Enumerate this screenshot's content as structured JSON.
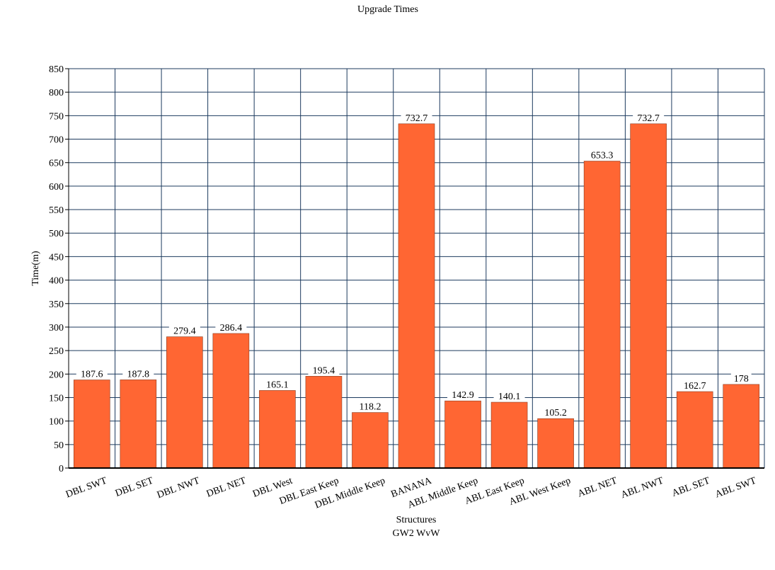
{
  "chart_data": {
    "type": "bar",
    "title": "Upgrade Times",
    "xlabel": "Structures",
    "subtitle": "GW2 WvW",
    "ylabel": "Time(m)",
    "ylim": [
      0,
      850
    ],
    "ytick_step": 50,
    "grid": true,
    "bar_color": "#ff6633",
    "grid_color": "#1c3a5e",
    "categories": [
      "DBL SWT",
      "DBL SET",
      "DBL NWT",
      "DBL NET",
      "DBL West",
      "DBL East Keep",
      "DBL Middle Keep",
      "BANANA",
      "ABL Middle Keep",
      "ABL East Keep",
      "ABL West Keep",
      "ABL NET",
      "ABL NWT",
      "ABL SET",
      "ABL SWT"
    ],
    "values": [
      187.6,
      187.8,
      279.4,
      286.4,
      165.1,
      195.4,
      118.2,
      732.7,
      142.9,
      140.1,
      105.2,
      653.3,
      732.7,
      162.7,
      178
    ],
    "value_labels": [
      "187.6",
      "187.8",
      "279.4",
      "286.4",
      "165.1",
      "195.4",
      "118.2",
      "732.7",
      "142.9",
      "140.1",
      "105.2",
      "653.3",
      "732.7",
      "162.7",
      "178"
    ]
  }
}
